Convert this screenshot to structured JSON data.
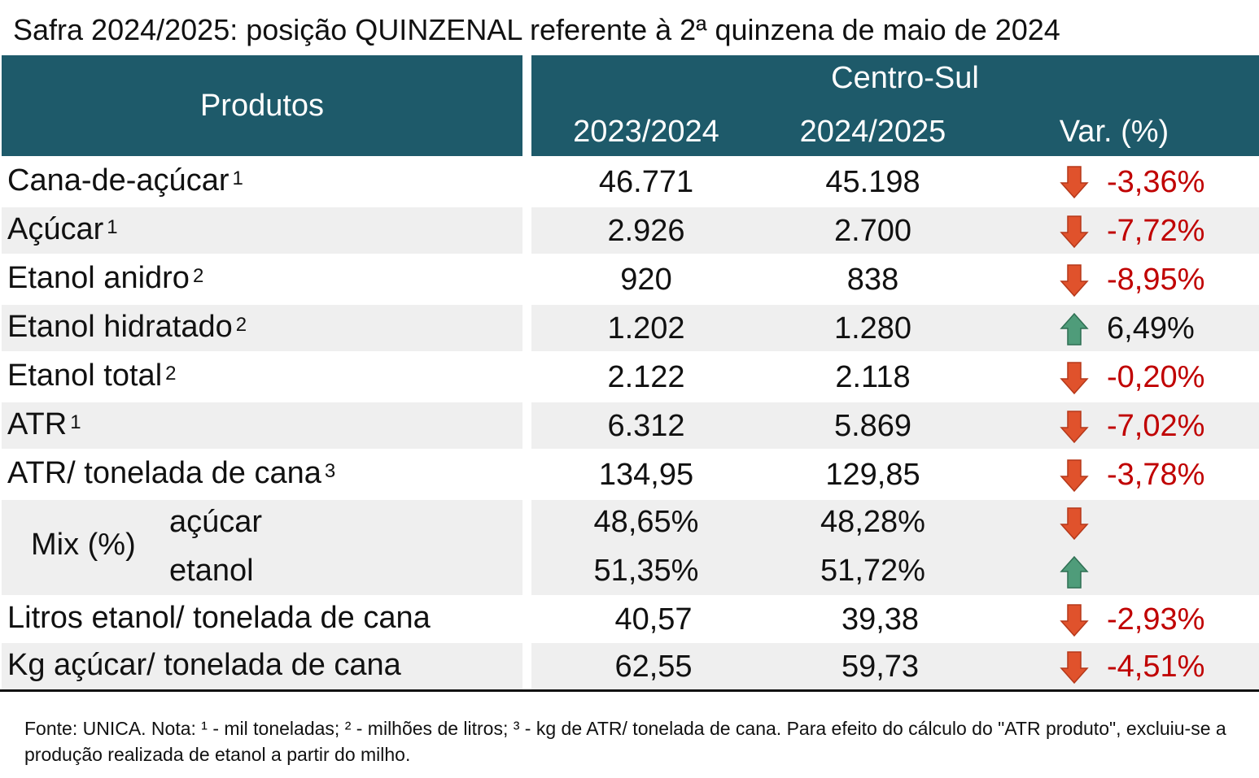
{
  "title": "Safra 2024/2025: posição QUINZENAL referente à 2ª quinzena de maio de 2024",
  "header": {
    "produtos": "Produtos",
    "region": "Centro-Sul",
    "col1": "2023/2024",
    "col2": "2024/2025",
    "col3": "Var. (%)",
    "color": "#1e5a6a"
  },
  "rows": [
    {
      "label": "Cana-de-açúcar",
      "note": "1",
      "v1": "46.771",
      "v2": "45.198",
      "var": "-3,36%",
      "trend": "down"
    },
    {
      "label": "Açúcar",
      "note": "1",
      "v1": "2.926",
      "v2": "2.700",
      "var": "-7,72%",
      "trend": "down"
    },
    {
      "label": "Etanol anidro",
      "note": "2",
      "v1": "920",
      "v2": "838",
      "var": "-8,95%",
      "trend": "down"
    },
    {
      "label": "Etanol hidratado",
      "note": "2",
      "v1": "1.202",
      "v2": "1.280",
      "var": "6,49%",
      "trend": "up"
    },
    {
      "label": "Etanol total",
      "note": "2",
      "v1": "2.122",
      "v2": "2.118",
      "var": "-0,20%",
      "trend": "down"
    },
    {
      "label": "ATR",
      "note": "1",
      "v1": "6.312",
      "v2": "5.869",
      "var": "-7,02%",
      "trend": "down"
    },
    {
      "label": "ATR/ tonelada de cana",
      "note": "3",
      "v1": "134,95",
      "v2": "129,85",
      "var": "-3,78%",
      "trend": "down"
    }
  ],
  "mix": {
    "label": "Mix (%)",
    "acucar": {
      "label": "açúcar",
      "v1": "48,65%",
      "v2": "48,28%",
      "trend": "down"
    },
    "etanol": {
      "label": "etanol",
      "v1": "51,35%",
      "v2": "51,72%",
      "trend": "up"
    }
  },
  "rows2": [
    {
      "label": "Litros etanol/ tonelada de cana",
      "v1": "40,57",
      "v2": "39,38",
      "var": "-2,93%",
      "trend": "down"
    },
    {
      "label": "Kg açúcar/ tonelada de cana",
      "v1": "62,55",
      "v2": "59,73",
      "var": "-4,51%",
      "trend": "down"
    }
  ],
  "colors": {
    "negative": "#c00000",
    "down_arrow": "#e0522c",
    "up_arrow": "#4f9c7a",
    "shade": "#efefef"
  },
  "footnote": "Fonte: UNICA. Nota: ¹ - mil toneladas; ² - milhões de litros; ³ - kg de ATR/ tonelada de cana. Para efeito do cálculo do \"ATR produto\", excluiu-se a produção realizada de etanol a partir do milho."
}
